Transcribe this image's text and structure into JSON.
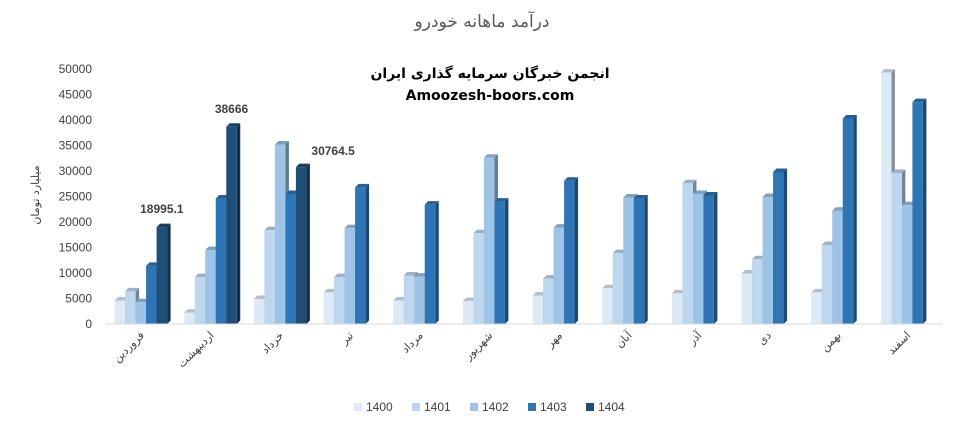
{
  "chart_data": {
    "type": "bar",
    "title": "درآمد ماهانه خودرو",
    "ylabel": "میلیارد تومان",
    "ylim": [
      0,
      50000
    ],
    "yticks": [
      "0",
      "5000",
      "10000",
      "15000",
      "20000",
      "25000",
      "30000",
      "35000",
      "40000",
      "45000",
      "50000"
    ],
    "grid": false,
    "legend_position": "bottom",
    "categories": [
      "فروردین",
      "اردیبهشت",
      "خرداد",
      "تیر",
      "مرداد",
      "شهریور",
      "مهر",
      "آبان",
      "آذر",
      "دی",
      "بهمن",
      "اسفند"
    ],
    "series": [
      {
        "name": "1400",
        "color": "#dce9f6",
        "values": [
          4600,
          2200,
          4900,
          6200,
          4600,
          4500,
          5600,
          7000,
          6000,
          9900,
          6200,
          49300
        ]
      },
      {
        "name": "1401",
        "color": "#bdd7ee",
        "values": [
          6400,
          9200,
          18400,
          9200,
          9500,
          17800,
          8900,
          13900,
          27600,
          12700,
          15500,
          29600
        ]
      },
      {
        "name": "1402",
        "color": "#9dc3e6",
        "values": [
          4300,
          14500,
          35200,
          18800,
          9300,
          32600,
          18900,
          24800,
          25500,
          24900,
          22200,
          23300
        ]
      },
      {
        "name": "1403",
        "color": "#2e75b6",
        "values": [
          11400,
          24600,
          25500,
          26800,
          23400,
          24000,
          28100,
          24600,
          25200,
          29800,
          40300,
          43500
        ]
      },
      {
        "name": "1404",
        "color": "#1f4e79",
        "values": [
          18995.1,
          38666,
          30764.5,
          null,
          null,
          null,
          null,
          null,
          null,
          null,
          null,
          null
        ]
      }
    ],
    "data_labels": [
      {
        "category": "فروردین",
        "series": "1404",
        "text": "18995.1"
      },
      {
        "category": "اردیبهشت",
        "series": "1404",
        "text": "38666"
      },
      {
        "category": "خرداد",
        "series": "1404",
        "text": "30764.5"
      }
    ]
  },
  "watermark": {
    "line1": "انجمن خبرگان سرمایه گذاری ایران",
    "line2": "Amoozesh-boors.com"
  }
}
